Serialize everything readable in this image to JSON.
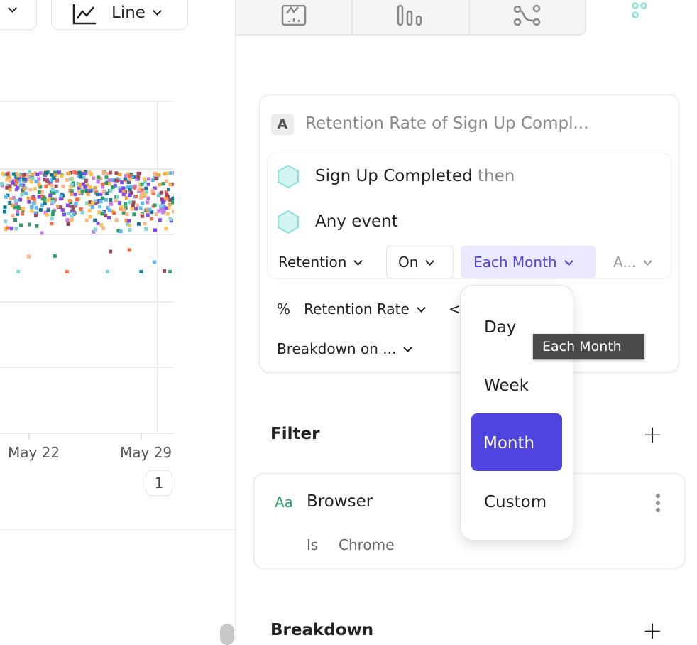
{
  "toolbar": {
    "chart_type_label": "Line"
  },
  "view_tabs": [
    {
      "icon": "insights-chart-icon"
    },
    {
      "icon": "bar-chart-icon"
    },
    {
      "icon": "flows-icon"
    },
    {
      "icon": "retention-dots-icon",
      "active": true
    }
  ],
  "chart": {
    "x_ticks": [
      "May 22",
      "May 29"
    ],
    "legend_count": "1"
  },
  "metric": {
    "badge": "A",
    "title": "Retention Rate of Sign Up Compl...",
    "events": [
      {
        "name": "Sign Up Completed",
        "suffix": "then"
      },
      {
        "name": "Any event"
      }
    ],
    "retention_label": "Retention",
    "on_label": "On",
    "period_label": "Each Month",
    "more_label": "A...",
    "measure_symbol": "%",
    "measure_label": "Retention Rate",
    "lt_symbol": "<",
    "breakdown_label": "Breakdown on ..."
  },
  "period_menu": {
    "options": [
      "Day",
      "Week",
      "Month",
      "Custom"
    ],
    "selected": "Month"
  },
  "tooltip": "Each Month",
  "filter": {
    "heading": "Filter",
    "property_type": "Aa",
    "property": "Browser",
    "operator": "Is",
    "value": "Chrome"
  },
  "breakdown": {
    "heading": "Breakdown"
  },
  "colors": {
    "accent": "#4f44e0",
    "accent_light": "#ebe9fd",
    "teal": "#8ee0da",
    "green": "#2e9e6a"
  }
}
